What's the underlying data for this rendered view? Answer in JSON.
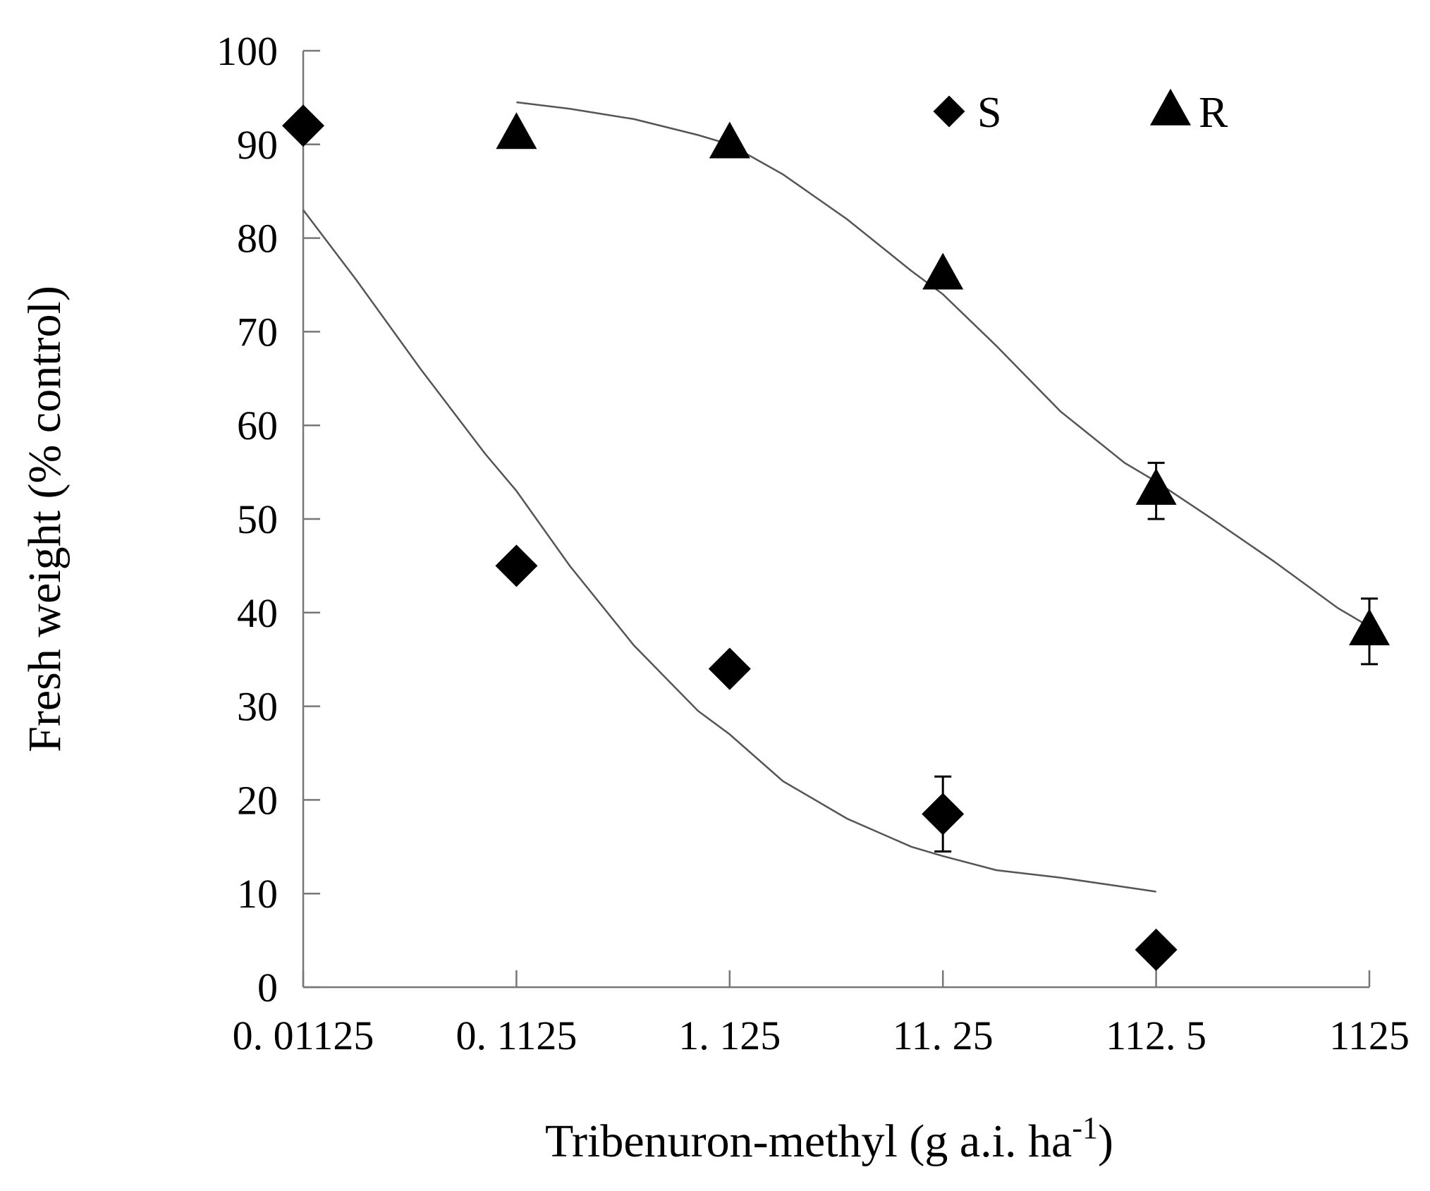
{
  "chart_data": {
    "type": "scatter",
    "title": "",
    "xlabel": "Tribenuron-methyl (g a.i. ha",
    "xlabel_superscript": "-1",
    "xlabel_suffix": ")",
    "ylabel": "Fresh weight (% control)",
    "x_scale": "log",
    "categories": [
      "0. 01125",
      "0. 1125",
      "1. 125",
      "11. 25",
      "112. 5",
      "1125"
    ],
    "x": [
      0.01125,
      0.1125,
      1.125,
      11.25,
      112.5,
      1125
    ],
    "ylim": [
      0,
      100
    ],
    "yticks": [
      0,
      10,
      20,
      30,
      40,
      50,
      60,
      70,
      80,
      90,
      100
    ],
    "series": [
      {
        "name": "S",
        "marker": "diamond",
        "values": [
          92,
          45,
          34,
          18.5,
          4
        ],
        "errors": [
          0,
          0,
          0,
          4,
          0
        ],
        "fit": {
          "x": [
            0.01125,
            0.02,
            0.04,
            0.08,
            0.1125,
            0.2,
            0.4,
            0.8,
            1.125,
            2,
            4,
            8,
            11.25,
            20,
            40,
            80,
            112.5
          ],
          "y": [
            83,
            75.5,
            66,
            57,
            53,
            45,
            36.5,
            29.5,
            27,
            22,
            18,
            15,
            14,
            12.5,
            11.7,
            10.7,
            10.2
          ]
        }
      },
      {
        "name": "R",
        "marker": "triangle",
        "values": [
          91,
          90,
          76,
          53,
          38
        ],
        "x": [
          0.1125,
          1.125,
          11.25,
          112.5,
          1125
        ],
        "errors": [
          0,
          0,
          0,
          3,
          3.5
        ],
        "fit": {
          "x": [
            0.1125,
            0.2,
            0.4,
            0.8,
            1.125,
            2,
            4,
            8,
            11.25,
            20,
            40,
            80,
            112.5,
            200,
            400,
            800,
            1125
          ],
          "y": [
            94.5,
            93.8,
            92.7,
            91,
            90,
            86.8,
            82,
            76.5,
            74,
            68.5,
            61.5,
            56,
            54,
            50.2,
            45.5,
            40.5,
            38.5
          ]
        }
      }
    ],
    "legend": {
      "position": "top-right",
      "entries": [
        "S",
        "R"
      ]
    }
  }
}
